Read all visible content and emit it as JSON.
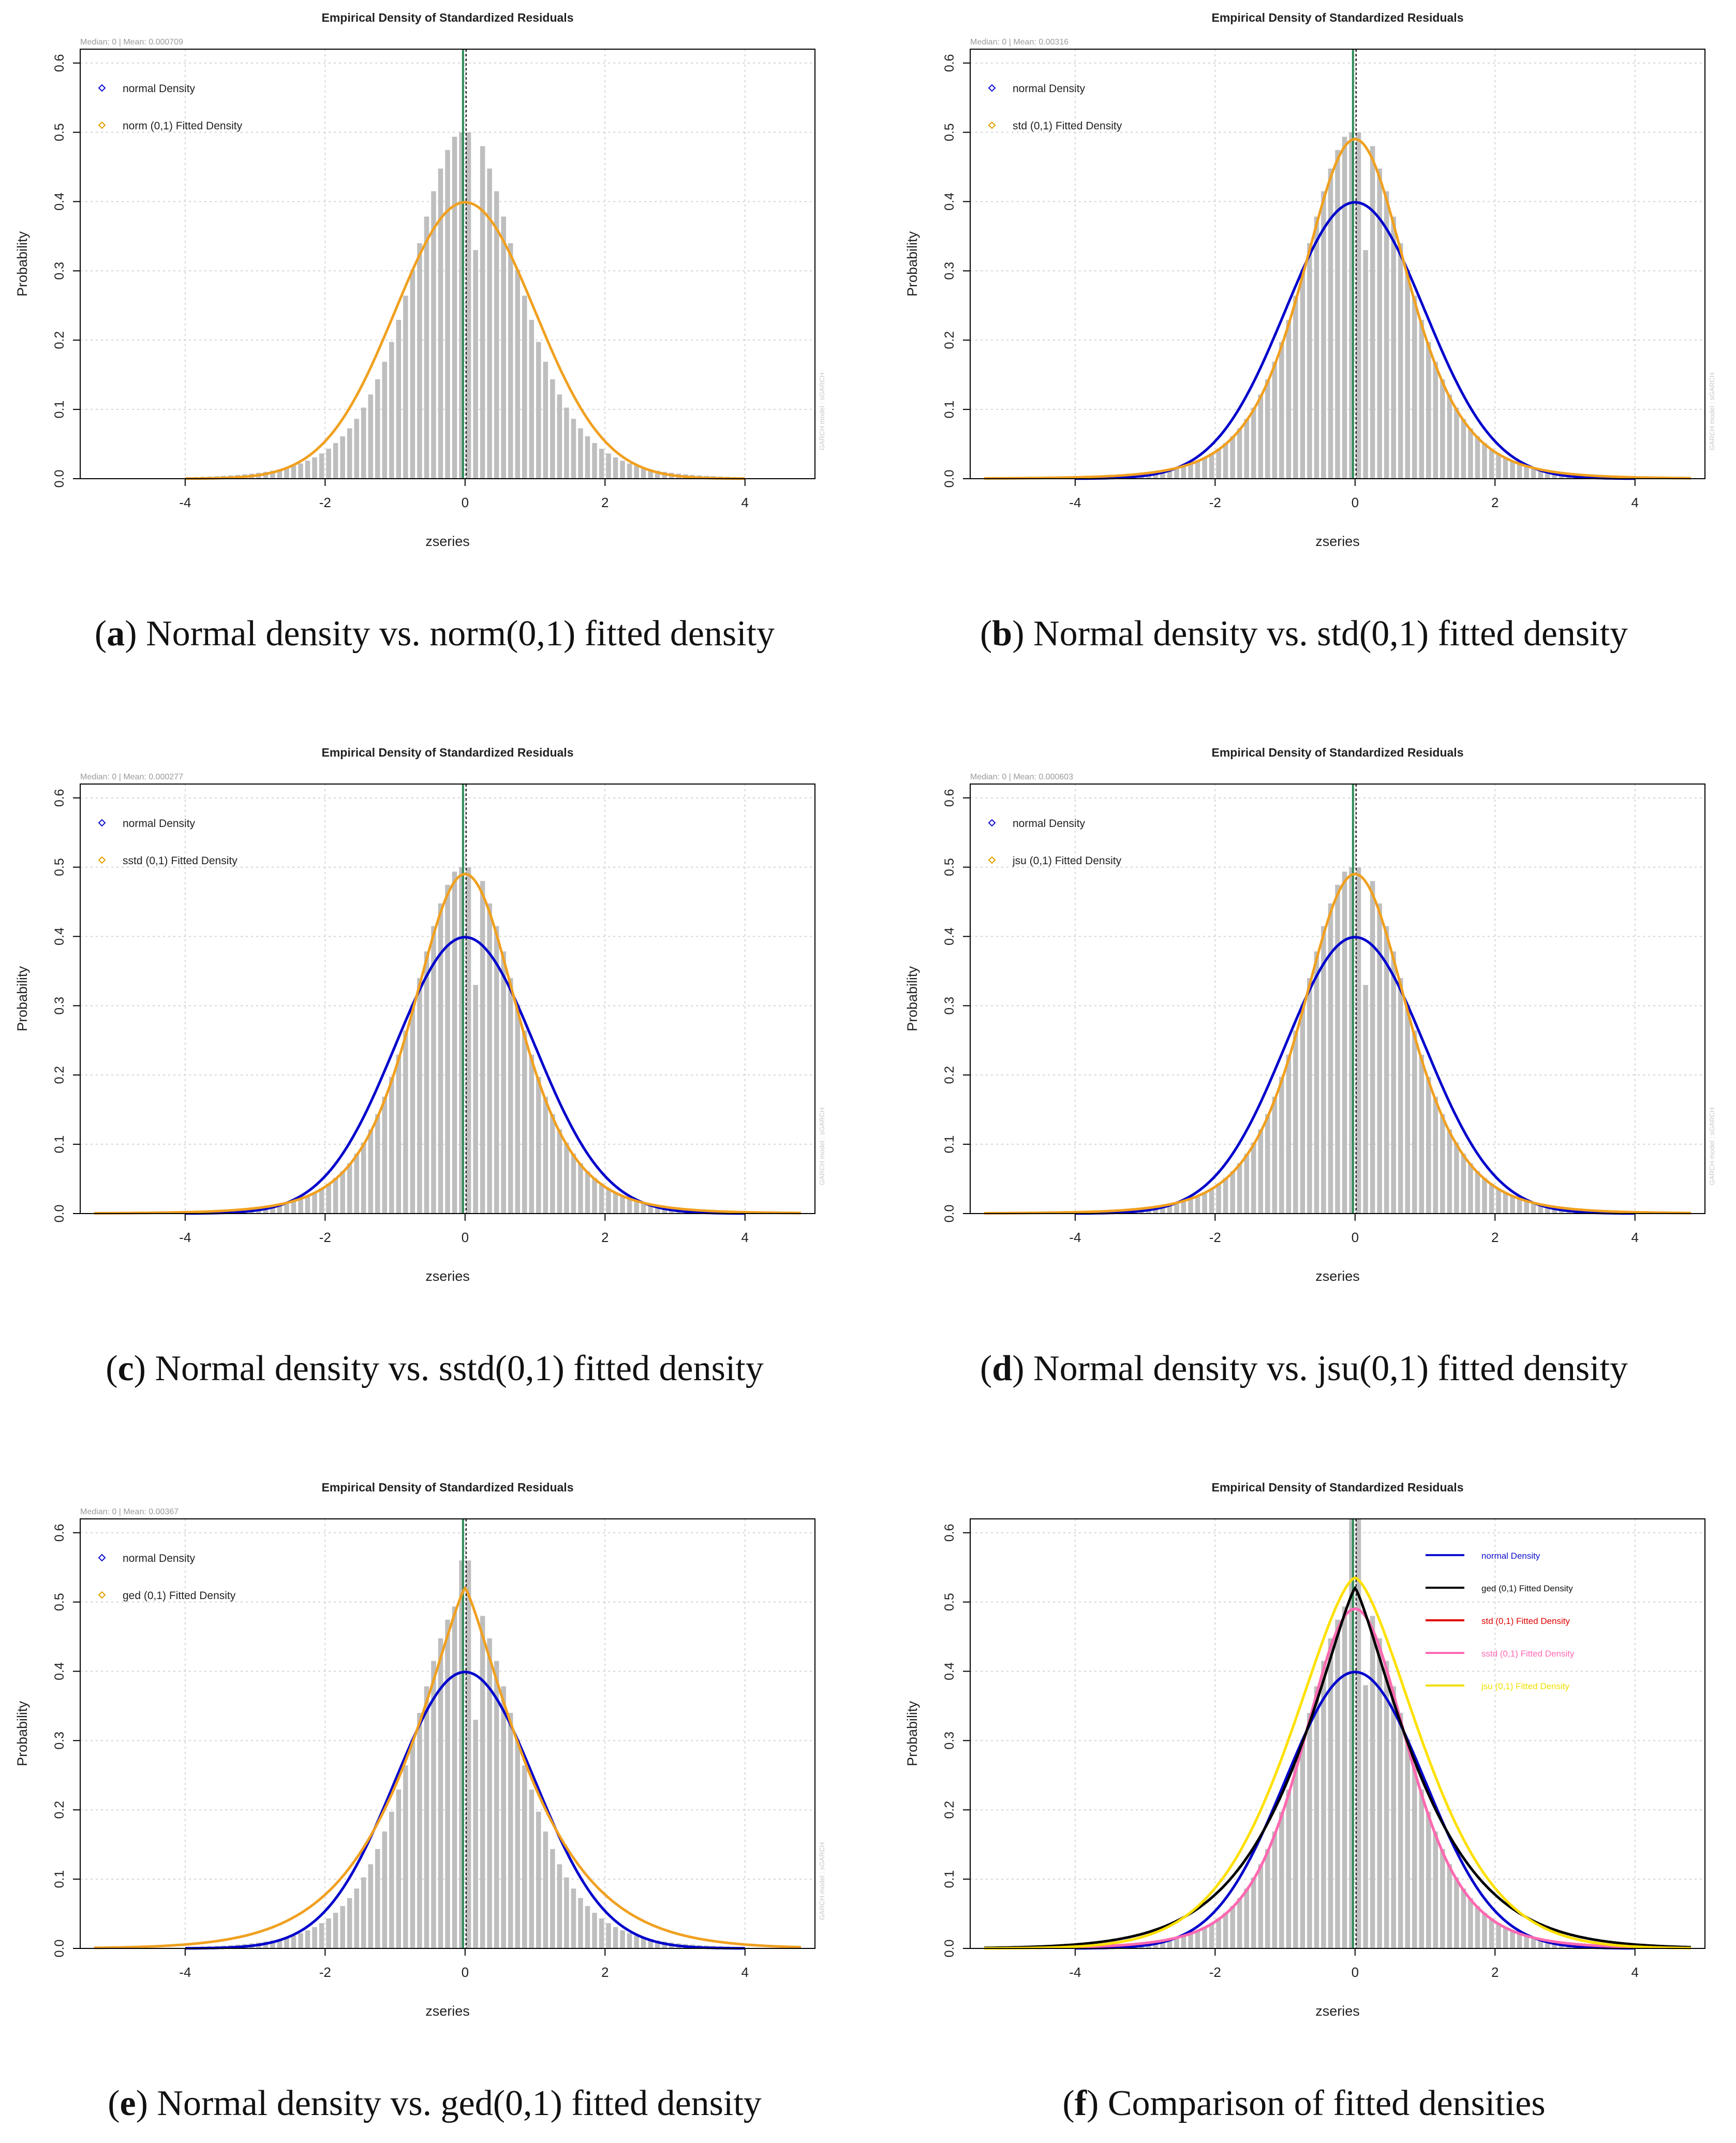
{
  "chart_data": [
    {
      "type": "bar",
      "title": "Empirical Density of Standardized Residuals",
      "subtitle": "Median:  0 | Mean:  0.000709",
      "xlabel": "zseries",
      "ylabel": "Probability",
      "xlim": [
        -5.5,
        5
      ],
      "ylim": [
        0,
        0.62
      ],
      "x_ticks": [
        -4,
        -2,
        0,
        2,
        4
      ],
      "y_ticks": [
        0.0,
        0.1,
        0.2,
        0.3,
        0.4,
        0.5,
        0.6
      ],
      "watermark": "GARCH model : sGARCH",
      "legend": [
        {
          "label": "normal Density",
          "color": "#1010d0",
          "style": "diamond"
        },
        {
          "label": "norm (0,1) Fitted Density",
          "color": "#e0a000",
          "style": "diamond"
        }
      ],
      "series": [
        {
          "name": "empirical histogram",
          "dist": "empirical",
          "peak": 0.5,
          "color": "#bebebe"
        },
        {
          "name": "norm (0,1) Fitted Density",
          "dist": "norm",
          "color": "#f0a020"
        }
      ],
      "caption": {
        "letter": "a",
        "text": "Normal density vs. norm(0,1) fitted density"
      }
    },
    {
      "type": "bar",
      "title": "Empirical Density of Standardized Residuals",
      "subtitle": "Median:  0 | Mean:  0.00316",
      "xlabel": "zseries",
      "ylabel": "Probability",
      "xlim": [
        -5.5,
        5
      ],
      "ylim": [
        0,
        0.62
      ],
      "x_ticks": [
        -4,
        -2,
        0,
        2,
        4
      ],
      "y_ticks": [
        0.0,
        0.1,
        0.2,
        0.3,
        0.4,
        0.5,
        0.6
      ],
      "watermark": "GARCH model : sGARCH",
      "legend": [
        {
          "label": "normal Density",
          "color": "#1010d0",
          "style": "diamond"
        },
        {
          "label": "std (0,1) Fitted Density",
          "color": "#e0a000",
          "style": "diamond"
        }
      ],
      "series": [
        {
          "name": "empirical histogram",
          "dist": "empirical",
          "peak": 0.5,
          "color": "#bebebe"
        },
        {
          "name": "normal Density",
          "dist": "norm",
          "color": "#0000cc"
        },
        {
          "name": "std (0,1) Fitted Density",
          "dist": "std",
          "color": "#f0a020"
        }
      ],
      "caption": {
        "letter": "b",
        "text": "Normal density vs. std(0,1) fitted density"
      }
    },
    {
      "type": "bar",
      "title": "Empirical Density of Standardized Residuals",
      "subtitle": "Median:  0 | Mean:  0.000277",
      "xlabel": "zseries",
      "ylabel": "Probability",
      "xlim": [
        -5.5,
        5
      ],
      "ylim": [
        0,
        0.62
      ],
      "x_ticks": [
        -4,
        -2,
        0,
        2,
        4
      ],
      "y_ticks": [
        0.0,
        0.1,
        0.2,
        0.3,
        0.4,
        0.5,
        0.6
      ],
      "watermark": "GARCH model : sGARCH",
      "legend": [
        {
          "label": "normal Density",
          "color": "#1010d0",
          "style": "diamond"
        },
        {
          "label": "sstd (0,1) Fitted Density",
          "color": "#e0a000",
          "style": "diamond"
        }
      ],
      "series": [
        {
          "name": "empirical histogram",
          "dist": "empirical",
          "peak": 0.5,
          "color": "#bebebe"
        },
        {
          "name": "normal Density",
          "dist": "norm",
          "color": "#0000cc"
        },
        {
          "name": "sstd (0,1) Fitted Density",
          "dist": "std",
          "color": "#f0a020"
        }
      ],
      "caption": {
        "letter": "c",
        "text": "Normal density vs. sstd(0,1) fitted density"
      }
    },
    {
      "type": "bar",
      "title": "Empirical Density of Standardized Residuals",
      "subtitle": "Median:  0 | Mean:  0.000603",
      "xlabel": "zseries",
      "ylabel": "Probability",
      "xlim": [
        -5.5,
        5
      ],
      "ylim": [
        0,
        0.62
      ],
      "x_ticks": [
        -4,
        -2,
        0,
        2,
        4
      ],
      "y_ticks": [
        0.0,
        0.1,
        0.2,
        0.3,
        0.4,
        0.5,
        0.6
      ],
      "watermark": "GARCH model : sGARCH",
      "legend": [
        {
          "label": "normal Density",
          "color": "#1010d0",
          "style": "diamond"
        },
        {
          "label": "jsu (0,1) Fitted Density",
          "color": "#e0a000",
          "style": "diamond"
        }
      ],
      "series": [
        {
          "name": "empirical histogram",
          "dist": "empirical",
          "peak": 0.5,
          "color": "#bebebe"
        },
        {
          "name": "normal Density",
          "dist": "norm",
          "color": "#0000cc"
        },
        {
          "name": "jsu (0,1) Fitted Density",
          "dist": "std",
          "color": "#f0a020"
        }
      ],
      "caption": {
        "letter": "d",
        "text": "Normal density vs. jsu(0,1) fitted density"
      }
    },
    {
      "type": "bar",
      "title": "Empirical Density of Standardized Residuals",
      "subtitle": "Median:  0 | Mean:  0.00367",
      "xlabel": "zseries",
      "ylabel": "Probability",
      "xlim": [
        -5.5,
        5
      ],
      "ylim": [
        0,
        0.62
      ],
      "x_ticks": [
        -4,
        -2,
        0,
        2,
        4
      ],
      "y_ticks": [
        0.0,
        0.1,
        0.2,
        0.3,
        0.4,
        0.5,
        0.6
      ],
      "watermark": "GARCH model : sGARCH",
      "legend": [
        {
          "label": "normal Density",
          "color": "#1010d0",
          "style": "diamond"
        },
        {
          "label": "ged (0,1) Fitted Density",
          "color": "#e0a000",
          "style": "diamond"
        }
      ],
      "series": [
        {
          "name": "empirical histogram",
          "dist": "empirical",
          "peak": 0.56,
          "color": "#bebebe"
        },
        {
          "name": "normal Density",
          "dist": "norm",
          "color": "#0000cc"
        },
        {
          "name": "ged (0,1) Fitted Density",
          "dist": "ged",
          "color": "#f0a020"
        }
      ],
      "caption": {
        "letter": "e",
        "text": "Normal density vs. ged(0,1) fitted density"
      }
    },
    {
      "type": "bar",
      "title": "Empirical Density of Standardized Residuals",
      "subtitle": "",
      "xlabel": "zseries",
      "ylabel": "Probability",
      "xlim": [
        -5.5,
        5
      ],
      "ylim": [
        0,
        0.62
      ],
      "x_ticks": [
        -4,
        -2,
        0,
        2,
        4
      ],
      "y_ticks": [
        0.0,
        0.1,
        0.2,
        0.3,
        0.4,
        0.5,
        0.6
      ],
      "watermark": "",
      "legend": [
        {
          "label": "normal Density",
          "color": "#1010d0",
          "style": "line"
        },
        {
          "label": "ged (0,1) Fitted Density",
          "color": "#000000",
          "style": "line"
        },
        {
          "label": "std (0,1) Fitted Density",
          "color": "#e00000",
          "style": "line"
        },
        {
          "label": "sstd (0,1) Fitted Density",
          "color": "#ff69b4",
          "style": "line"
        },
        {
          "label": "jsu (0,1) Fitted Density",
          "color": "#f0e000",
          "style": "line"
        }
      ],
      "series": [
        {
          "name": "empirical histogram",
          "dist": "empirical",
          "peak": 0.62,
          "color": "#bebebe"
        },
        {
          "name": "normal Density",
          "dist": "norm",
          "color": "#0000cc"
        },
        {
          "name": "std (0,1) Fitted Density",
          "dist": "std",
          "color": "#e00000"
        },
        {
          "name": "sstd (0,1) Fitted Density",
          "dist": "std",
          "color": "#ff69b4"
        },
        {
          "name": "ged (0,1) Fitted Density",
          "dist": "ged",
          "color": "#000000"
        },
        {
          "name": "jsu (0,1) Fitted Density",
          "dist": "jsu",
          "color": "#ffe000"
        }
      ],
      "caption": {
        "letter": "f",
        "text": "Comparison of fitted densities"
      }
    }
  ]
}
